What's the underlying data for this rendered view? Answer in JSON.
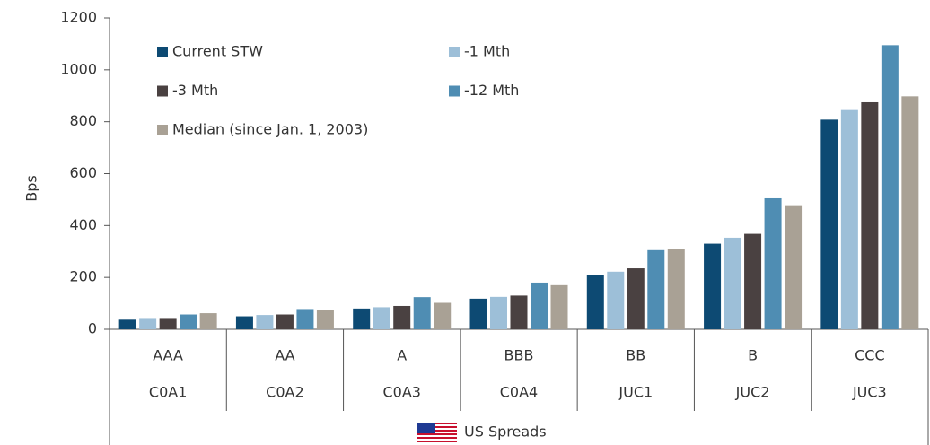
{
  "chart_data": {
    "type": "bar",
    "y_label": "Bps",
    "categories": [
      "AAA",
      "AA",
      "A",
      "BBB",
      "BB",
      "B",
      "CCC"
    ],
    "subcategories": [
      "C0A1",
      "C0A2",
      "C0A3",
      "C0A4",
      "JUC1",
      "JUC2",
      "JUC3"
    ],
    "group_label": "US Spreads",
    "series": [
      {
        "name": "Current STW",
        "color": "#0d4a73",
        "values": [
          37,
          50,
          80,
          118,
          208,
          330,
          808
        ]
      },
      {
        "name": "-1 Mth",
        "color": "#9dbfd8",
        "values": [
          40,
          55,
          85,
          125,
          222,
          353,
          845
        ]
      },
      {
        "name": "-3 Mth",
        "color": "#4a4141",
        "values": [
          40,
          57,
          90,
          130,
          235,
          368,
          875
        ]
      },
      {
        "name": "-12 Mth",
        "color": "#4f8db3",
        "values": [
          57,
          78,
          124,
          180,
          305,
          505,
          1095
        ]
      },
      {
        "name": "Median (since Jan. 1, 2003)",
        "color": "#a9a195",
        "values": [
          62,
          74,
          102,
          170,
          310,
          475,
          898
        ]
      }
    ],
    "ylim": [
      0,
      1200
    ],
    "yticks": [
      0,
      200,
      400,
      600,
      800,
      1000,
      1200
    ],
    "legend": "top-left",
    "grid": false
  }
}
